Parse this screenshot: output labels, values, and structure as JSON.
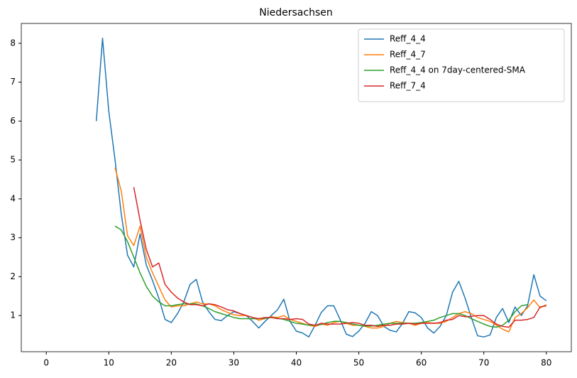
{
  "chart_data": {
    "type": "line",
    "title": "Niedersachsen",
    "x": [
      8,
      9,
      10,
      11,
      12,
      13,
      14,
      15,
      16,
      17,
      18,
      19,
      20,
      21,
      22,
      23,
      24,
      25,
      26,
      27,
      28,
      29,
      30,
      31,
      32,
      33,
      34,
      35,
      36,
      37,
      38,
      39,
      40,
      41,
      42,
      43,
      44,
      45,
      46,
      47,
      48,
      49,
      50,
      51,
      52,
      53,
      54,
      55,
      56,
      57,
      58,
      59,
      60,
      61,
      62,
      63,
      64,
      65,
      66,
      67,
      68,
      69,
      70,
      71,
      72,
      73,
      74,
      75,
      76,
      77,
      78,
      79,
      80
    ],
    "series": [
      {
        "name": "Reff_4_4",
        "color": "#1f77b4",
        "values": [
          6.0,
          8.13,
          6.25,
          5.0,
          3.6,
          2.55,
          2.25,
          3.1,
          2.3,
          1.9,
          1.45,
          0.9,
          0.82,
          1.05,
          1.35,
          1.8,
          1.93,
          1.35,
          1.1,
          0.9,
          0.87,
          1.0,
          1.1,
          1.05,
          1.0,
          0.85,
          0.68,
          0.85,
          1.0,
          1.15,
          1.42,
          0.85,
          0.6,
          0.55,
          0.45,
          0.75,
          1.08,
          1.25,
          1.25,
          0.9,
          0.52,
          0.46,
          0.6,
          0.8,
          1.1,
          1.0,
          0.72,
          0.62,
          0.58,
          0.8,
          1.1,
          1.07,
          0.95,
          0.68,
          0.55,
          0.72,
          1.0,
          1.6,
          1.88,
          1.45,
          0.95,
          0.48,
          0.45,
          0.5,
          0.95,
          1.18,
          0.82,
          1.22,
          1.0,
          1.25,
          2.05,
          1.5,
          1.38
        ]
      },
      {
        "name": "Reff_4_7",
        "color": "#ff7f0e",
        "values": [
          null,
          null,
          null,
          4.8,
          4.2,
          3.05,
          2.8,
          3.3,
          2.5,
          2.1,
          1.75,
          1.4,
          1.22,
          1.25,
          1.25,
          1.3,
          1.35,
          1.3,
          1.3,
          1.25,
          1.15,
          1.08,
          1.02,
          1.0,
          1.0,
          0.95,
          0.88,
          0.92,
          0.97,
          0.95,
          1.0,
          0.9,
          0.85,
          0.8,
          0.75,
          0.72,
          0.78,
          0.75,
          0.82,
          0.85,
          0.8,
          0.75,
          0.75,
          0.72,
          0.68,
          0.68,
          0.72,
          0.8,
          0.85,
          0.82,
          0.8,
          0.75,
          0.8,
          0.82,
          0.8,
          0.8,
          0.85,
          0.95,
          1.05,
          1.1,
          1.05,
          0.95,
          0.9,
          0.85,
          0.75,
          0.65,
          0.58,
          0.95,
          1.05,
          1.2,
          1.4,
          1.2,
          1.28
        ]
      },
      {
        "name": "Reff_4_4 on 7day-centered-SMA",
        "color": "#2ca02c",
        "values": [
          null,
          null,
          null,
          3.3,
          3.2,
          2.9,
          2.5,
          2.1,
          1.75,
          1.5,
          1.35,
          1.25,
          1.25,
          1.28,
          1.3,
          1.3,
          1.3,
          1.25,
          1.18,
          1.1,
          1.05,
          1.0,
          0.95,
          0.92,
          0.92,
          0.92,
          0.92,
          0.93,
          0.95,
          0.93,
          0.9,
          0.85,
          0.8,
          0.78,
          0.75,
          0.75,
          0.77,
          0.82,
          0.85,
          0.85,
          0.82,
          0.78,
          0.75,
          0.73,
          0.73,
          0.75,
          0.78,
          0.8,
          0.8,
          0.8,
          0.8,
          0.8,
          0.82,
          0.85,
          0.88,
          0.95,
          1.0,
          1.05,
          1.05,
          1.0,
          0.92,
          0.85,
          0.78,
          0.72,
          0.7,
          0.75,
          0.88,
          1.1,
          1.25,
          1.28,
          null,
          null,
          null
        ]
      },
      {
        "name": "Reff_7_4",
        "color": "#d62728",
        "values": [
          null,
          null,
          null,
          null,
          null,
          null,
          4.3,
          3.45,
          2.7,
          2.25,
          2.35,
          1.8,
          1.6,
          1.45,
          1.35,
          1.28,
          1.28,
          1.25,
          1.3,
          1.28,
          1.22,
          1.15,
          1.12,
          1.05,
          1.0,
          0.95,
          0.92,
          0.95,
          0.95,
          0.92,
          0.92,
          0.9,
          0.92,
          0.9,
          0.78,
          0.75,
          0.8,
          0.78,
          0.78,
          0.78,
          0.8,
          0.82,
          0.8,
          0.75,
          0.75,
          0.72,
          0.75,
          0.75,
          0.78,
          0.78,
          0.8,
          0.78,
          0.8,
          0.8,
          0.8,
          0.82,
          0.88,
          0.9,
          1.0,
          0.97,
          0.98,
          1.0,
          1.0,
          0.9,
          0.78,
          0.72,
          0.7,
          0.88,
          0.88,
          0.9,
          0.95,
          1.22,
          1.25
        ]
      }
    ],
    "xlim": [
      -4,
      84
    ],
    "xticks": [
      0,
      10,
      20,
      30,
      40,
      50,
      60,
      70,
      80
    ],
    "ylim": [
      0.07,
      8.51
    ],
    "yticks": [
      1,
      2,
      3,
      4,
      5,
      6,
      7,
      8
    ],
    "grid": false,
    "legend": "upper right"
  }
}
